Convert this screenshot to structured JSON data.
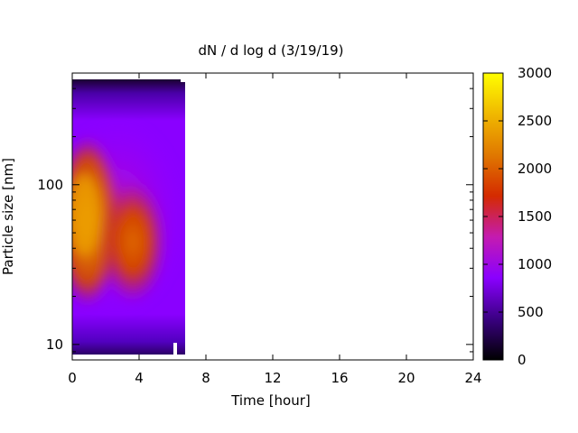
{
  "chart_data": {
    "type": "heatmap",
    "title": "dN / d log d (3/19/19)",
    "xlabel": "Time [hour]",
    "ylabel": "Particle size [nm]",
    "x_range": [
      0,
      24
    ],
    "x_ticks": [
      0,
      4,
      8,
      12,
      16,
      20,
      24
    ],
    "y_scale": "log",
    "y_range_nm": [
      8,
      500
    ],
    "y_ticks": [
      10,
      100
    ],
    "data_time_range_hours": [
      0,
      6.7
    ],
    "colorbar": {
      "range": [
        0,
        3000
      ],
      "ticks": [
        0,
        500,
        1000,
        1500,
        2000,
        2500,
        3000
      ],
      "colors": [
        "#000000",
        "#3a0082",
        "#8a00ff",
        "#c41bb0",
        "#d42a00",
        "#e07800",
        "#f0b800",
        "#ffff00"
      ]
    },
    "features": [
      {
        "time_hours": 0.8,
        "size_nm": 95,
        "value": 2300
      },
      {
        "time_hours": 3.6,
        "size_nm": 60,
        "value": 1750
      }
    ]
  }
}
